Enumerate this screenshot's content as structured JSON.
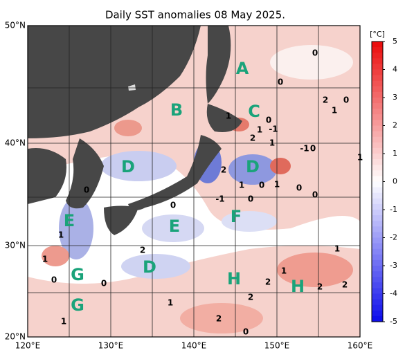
{
  "title": "Daily SST anomalies 08 May 2025.",
  "unit": "[°C]",
  "lat_labels": [
    "50°N",
    "40°N",
    "30°N",
    "20°N"
  ],
  "lon_labels": [
    "120°E",
    "130°E",
    "140°E",
    "150°E",
    "160°E"
  ],
  "colorbar": {
    "range": [
      -5,
      5
    ],
    "ticks": [
      -5,
      -4,
      -3,
      -2,
      -1,
      0,
      1,
      2,
      3,
      4,
      5
    ]
  },
  "regions": [
    "A",
    "B",
    "C",
    "D",
    "D",
    "E",
    "E",
    "F",
    "D",
    "H",
    "H",
    "G",
    "G"
  ],
  "contour_labels": [
    "0",
    "0",
    "2",
    "0",
    "1",
    "1",
    "0",
    "-1",
    "1",
    "2",
    "1",
    "-1",
    "0",
    "1",
    "2",
    "1",
    "0",
    "1",
    "0",
    "-1",
    "0",
    "0",
    "0",
    "0",
    "1",
    "1",
    "0",
    "2",
    "1",
    "2",
    "2",
    "2",
    "2",
    "1",
    "0",
    "2",
    "1",
    "0",
    "1"
  ]
}
